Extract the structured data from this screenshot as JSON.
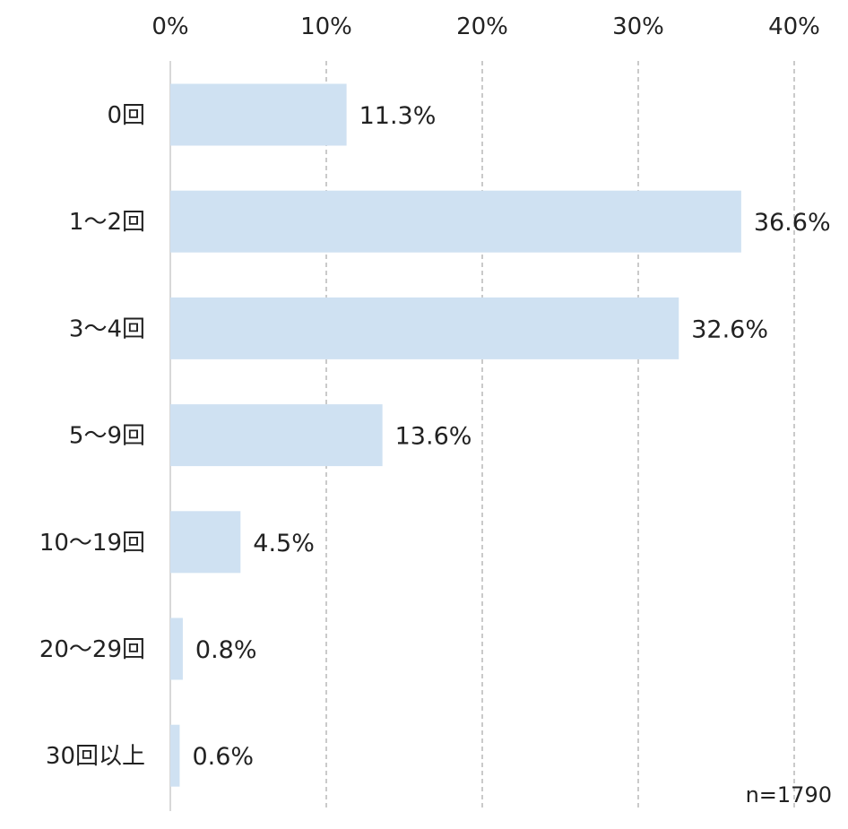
{
  "chart_data": {
    "type": "bar",
    "orientation": "horizontal",
    "categories": [
      "0回",
      "1～2回",
      "3～4回",
      "5～9回",
      "10～19回",
      "20～29回",
      "30回以上"
    ],
    "values": [
      11.3,
      36.6,
      32.6,
      13.6,
      4.5,
      0.8,
      0.6
    ],
    "value_labels": [
      "11.3%",
      "36.6%",
      "32.6%",
      "13.6%",
      "4.5%",
      "0.8%",
      "0.6%"
    ],
    "x_ticks": [
      0,
      10,
      20,
      30,
      40
    ],
    "x_tick_labels": [
      "0%",
      "10%",
      "20%",
      "30%",
      "40%"
    ],
    "xlim": [
      0,
      40
    ],
    "x_axis_position": "top",
    "grid": "vertical dashed",
    "title": "",
    "xlabel": "",
    "ylabel": "",
    "note": "n=1790",
    "colors": {
      "bar": "#cfe1f2",
      "grid": "#b8b8b8",
      "axis": "#d8d8d8",
      "text": "#222222"
    }
  }
}
